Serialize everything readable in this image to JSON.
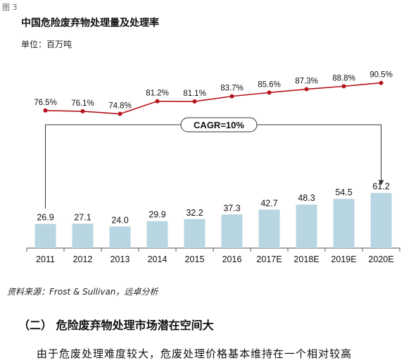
{
  "figure_label": "图 3",
  "unit_label": "单位：百万吨",
  "source": "资料来源：Frost & Sullivan，远卓分析",
  "section_heading": "（二）  危险废弃物处理市场潜在空间大",
  "body_text": "由于危废处理难度较大，危废处理价格基本维持在一个相对较高",
  "colors": {
    "bar": "#b8d5e2",
    "line": "#b5121b",
    "axis": "#555555",
    "annotation": "#333333"
  },
  "chart_data": {
    "type": "bar+line",
    "title": "中国危险废弃物处理量及处理率",
    "categories": [
      "2011",
      "2012",
      "2013",
      "2014",
      "2015",
      "2016",
      "2017E",
      "2018E",
      "2019E",
      "2020E"
    ],
    "series": [
      {
        "type": "bar",
        "values": [
          26.9,
          27.1,
          24.0,
          29.9,
          32.2,
          37.3,
          42.7,
          48.3,
          54.5,
          61.2
        ],
        "labels": [
          "26.9",
          "27.1",
          "24.0",
          "29.9",
          "32.2",
          "37.3",
          "42.7",
          "48.3",
          "54.5",
          "61.2"
        ]
      },
      {
        "type": "line",
        "values": [
          76.5,
          76.1,
          74.8,
          81.2,
          81.1,
          83.7,
          85.6,
          87.3,
          88.8,
          90.5
        ],
        "labels": [
          "76.5%",
          "76.1%",
          "74.8%",
          "81.2%",
          "81.1%",
          "83.7%",
          "85.6%",
          "87.3%",
          "88.8%",
          "90.5%"
        ]
      }
    ],
    "annotation": "CAGR=10%",
    "bar_ylim": [
      0,
      80
    ],
    "line_ylim": [
      70,
      100
    ],
    "grid": false,
    "legend": "none"
  }
}
